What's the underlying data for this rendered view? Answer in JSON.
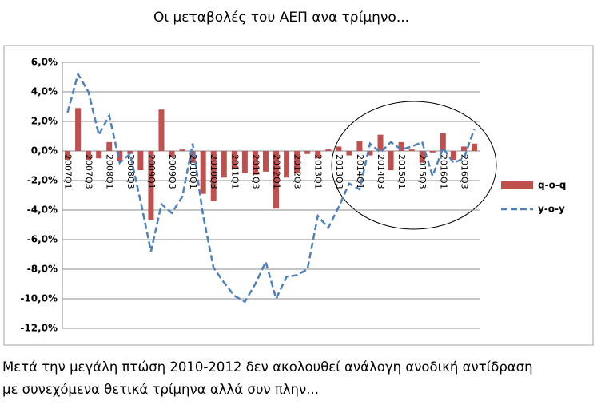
{
  "chart_data": {
    "type": "bar_line",
    "title": "Οι μεταβολές του ΑΕΠ ανα τρίμηνο...",
    "caption": [
      "Μετά την μεγάλη πτώση 2010-2012 δεν ακολουθεί ανάλογη ανοδική αντίδραση",
      "με συνεχόμενα θετικά τρίμηνα αλλά συν πλην..."
    ],
    "categories": [
      "2007Q1",
      null,
      "2007Q3",
      null,
      "2008Q1",
      null,
      "2008Q3",
      null,
      "2009Q1",
      null,
      "2009Q3",
      null,
      "2010Q1",
      null,
      "2010Q3",
      null,
      "2011Q1",
      null,
      "2011Q3",
      null,
      "2012Q1",
      null,
      "2012Q3",
      null,
      "2013Q1",
      null,
      "2013Q3",
      null,
      "2014Q1",
      null,
      "2014Q3",
      null,
      "2015Q1",
      null,
      "2015Q3",
      null,
      "2016Q1",
      null,
      "2016Q3",
      null
    ],
    "series": [
      {
        "name": "q-o-q",
        "color": "#c0504d",
        "kind": "bar",
        "values": [
          -0.6,
          2.9,
          -0.6,
          -0.5,
          0.6,
          -0.7,
          -0.2,
          -1.3,
          -4.7,
          2.8,
          -0.4,
          0.1,
          -0.8,
          -2.9,
          -3.4,
          -1.8,
          -1.2,
          -1.5,
          -1.6,
          -1.4,
          -3.9,
          -1.8,
          -1.5,
          -0.2,
          -0.5,
          0.1,
          0.3,
          -0.3,
          0.7,
          -0.3,
          1.1,
          -1.3,
          0.6,
          0.1,
          -0.8,
          -0.1,
          1.2,
          -0.6,
          0.3,
          0.5
        ]
      },
      {
        "name": "y-o-y",
        "color": "#4f81bd",
        "kind": "line",
        "values": [
          2.6,
          5.2,
          4.0,
          1.1,
          2.4,
          -0.8,
          -0.2,
          -3.4,
          -6.8,
          -3.6,
          -4.2,
          -3.1,
          0.5,
          -4.4,
          -7.9,
          -8.9,
          -9.8,
          -10.2,
          -9.0,
          -7.5,
          -10.0,
          -8.5,
          -8.4,
          -8.0,
          -4.4,
          -5.2,
          -3.8,
          -2.2,
          -2.6,
          0.5,
          -0.1,
          0.6,
          0.1,
          0.3,
          0.6,
          -1.7,
          0.2,
          -0.8,
          -0.5,
          1.5
        ]
      }
    ],
    "ylim": [
      -12,
      6
    ],
    "yticks": [
      {
        "value": 6,
        "label": "6,0%"
      },
      {
        "value": 4,
        "label": "4,0%"
      },
      {
        "value": 2,
        "label": "2,0%"
      },
      {
        "value": 0,
        "label": "0,0%"
      },
      {
        "value": -2,
        "label": "-2,0%"
      },
      {
        "value": -4,
        "label": "-4,0%"
      },
      {
        "value": -6,
        "label": "-6,0%"
      },
      {
        "value": -8,
        "label": "-8,0%"
      },
      {
        "value": -10,
        "label": "-10,0%"
      },
      {
        "value": -12,
        "label": "-12,0%"
      }
    ],
    "grid": true,
    "legend": "right"
  }
}
